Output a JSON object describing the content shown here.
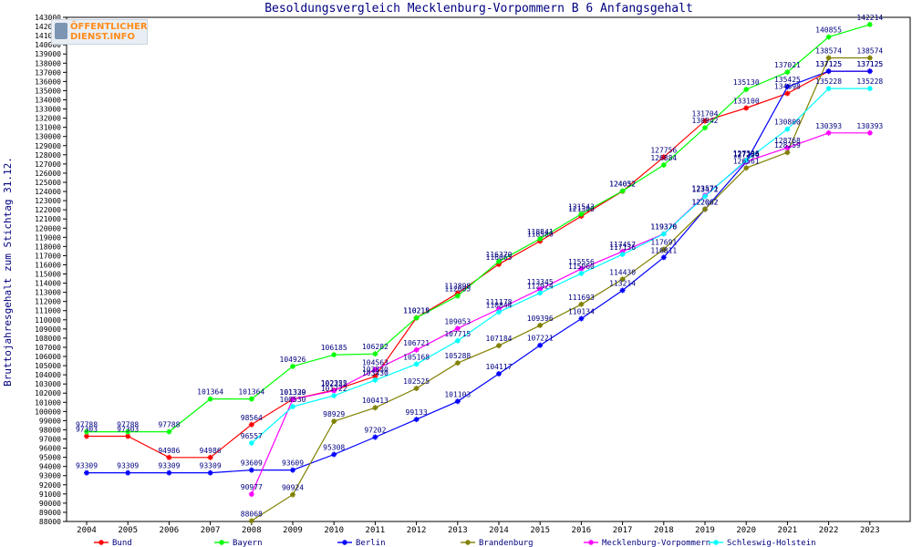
{
  "logo": {
    "line1": "ÖFFENTLICHER",
    "line2": "DIENST.INFO"
  },
  "chart_data": {
    "type": "line",
    "title": "Besoldungsvergleich Mecklenburg-Vorpommern B 6 Anfangsgehalt",
    "xlabel": "",
    "ylabel": "Bruttojahresgehalt zum Stichtag 31.12.",
    "ylim": [
      88000,
      143000
    ],
    "ytick_step": 1000,
    "grid": false,
    "legend_position": "bottom",
    "categories": [
      "2004",
      "2005",
      "2006",
      "2007",
      "2008",
      "2009",
      "2010",
      "2011",
      "2012",
      "2013",
      "2014",
      "2015",
      "2016",
      "2017",
      "2018",
      "2019",
      "2020",
      "2021",
      "2022",
      "2023"
    ],
    "series": [
      {
        "name": "Bund",
        "color": "#ff0000",
        "values": [
          97303,
          97303,
          94986,
          94986,
          98564,
          101339,
          102322,
          103830,
          110215,
          112898,
          116065,
          118580,
          121300,
          124032,
          127756,
          131704,
          133100,
          134698,
          137125,
          137125
        ]
      },
      {
        "name": "Bayern",
        "color": "#00ff00",
        "values": [
          97788,
          97788,
          97788,
          101364,
          101364,
          104926,
          106185,
          106282,
          110219,
          112605,
          116370,
          118841,
          121543,
          124052,
          126884,
          130942,
          135130,
          137021,
          140855,
          142214
        ]
      },
      {
        "name": "Berlin",
        "color": "#0000ff",
        "values": [
          93309,
          93309,
          93309,
          93309,
          93609,
          93609,
          95308,
          97202,
          99133,
          101103,
          104117,
          107221,
          110134,
          113214,
          116811,
          122062,
          127224,
          135425,
          137125,
          137125
        ]
      },
      {
        "name": "Brandenburg",
        "color": "#808000",
        "values": [
          null,
          null,
          null,
          null,
          88068,
          90924,
          98929,
          100413,
          102525,
          105288,
          107184,
          109396,
          111693,
          114430,
          117691,
          122062,
          126561,
          128259,
          138574,
          138574
        ]
      },
      {
        "name": "Mecklenburg-Vorpommern",
        "color": "#ff00ff",
        "values": [
          null,
          null,
          null,
          null,
          90977,
          101320,
          102255,
          104563,
          106721,
          109053,
          111178,
          113345,
          115556,
          117457,
          119376,
          123571,
          127266,
          128768,
          130393,
          130393
        ]
      },
      {
        "name": "Schleswig-Holstein",
        "color": "#00ffff",
        "values": [
          null,
          null,
          null,
          null,
          96557,
          100530,
          101722,
          103430,
          105168,
          107715,
          110844,
          112924,
          115060,
          117136,
          119370,
          123472,
          127396,
          130800,
          135228,
          135228
        ]
      }
    ]
  }
}
